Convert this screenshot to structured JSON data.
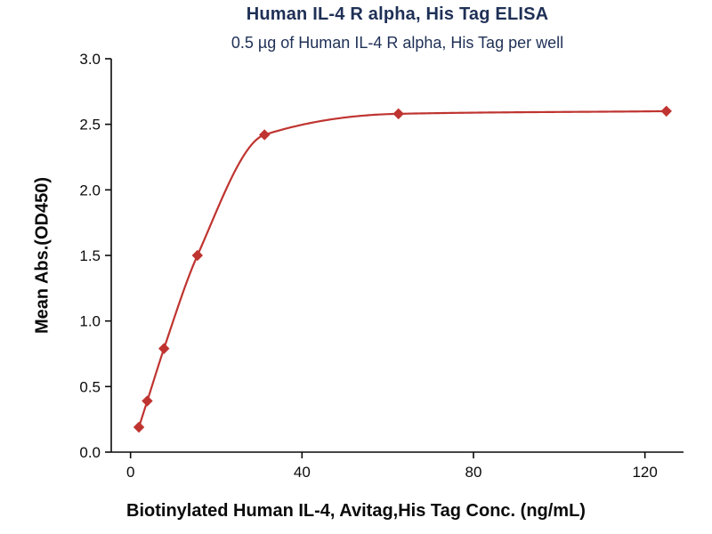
{
  "chart_data": {
    "type": "scatter",
    "title": "Human IL-4 R alpha, His Tag ELISA",
    "subtitle": "0.5 µg of Human IL-4 R alpha, His Tag per well",
    "xlabel": "Biotinylated Human IL-4, Avitag,His Tag Conc. (ng/mL)",
    "ylabel": "Mean Abs.(OD450)",
    "x": [
      1.95,
      3.9,
      7.8,
      15.6,
      31.25,
      62.5,
      125
    ],
    "y": [
      0.19,
      0.39,
      0.79,
      1.5,
      2.42,
      2.58,
      2.6
    ],
    "xlim": [
      -4.5,
      129
    ],
    "ylim": [
      0,
      3
    ],
    "xticks": [
      0,
      40,
      80,
      120
    ],
    "xtick_labels": [
      "0",
      "40",
      "80",
      "120"
    ],
    "yticks": [
      0,
      0.5,
      1.0,
      1.5,
      2.0,
      2.5,
      3.0
    ],
    "ytick_labels": [
      "0.0",
      "0.5",
      "1.0",
      "1.5",
      "2.0",
      "2.5",
      "3.0"
    ],
    "marker": "diamond",
    "curve_color": "#bf3430",
    "point_color": "#bf3430",
    "axis_color": "#0a0a0a",
    "title_color": "#1f3056",
    "grid": false,
    "legend": "none",
    "fit": "smooth sigmoidal curve through points"
  }
}
